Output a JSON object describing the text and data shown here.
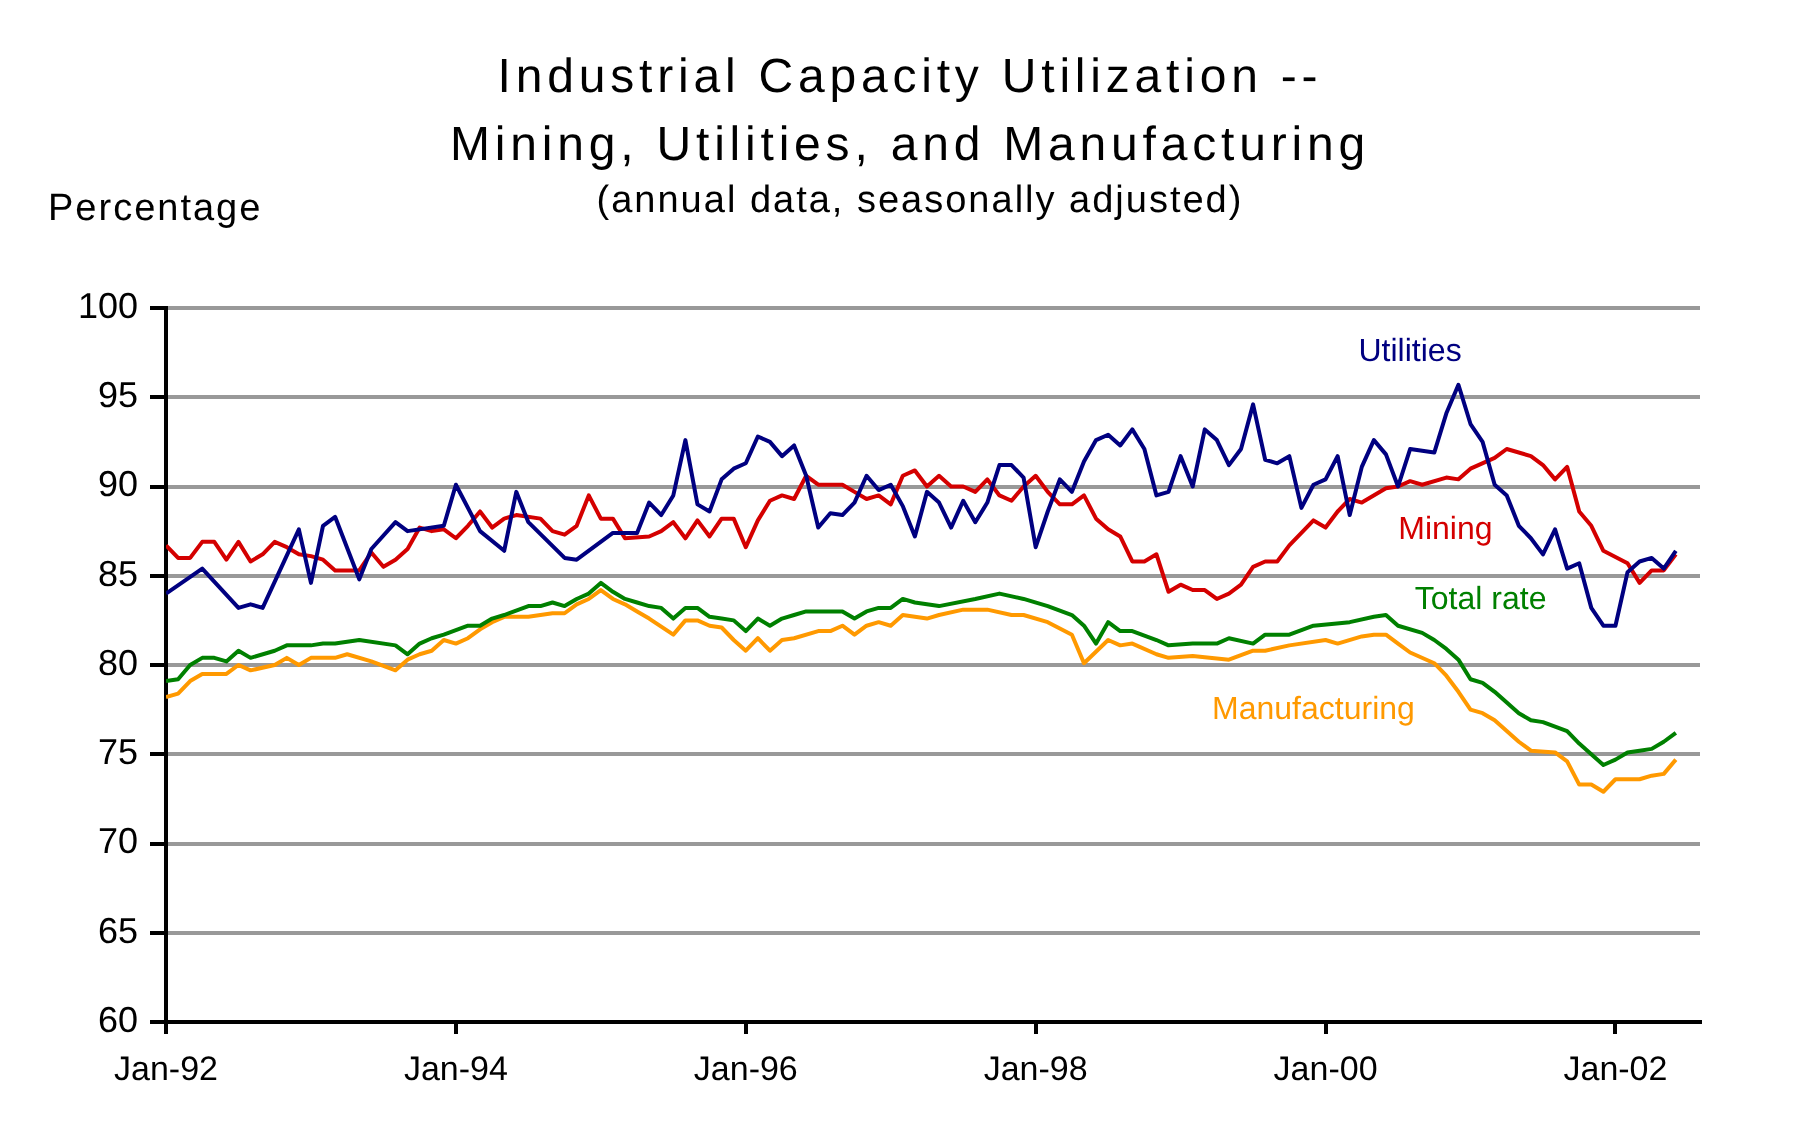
{
  "chart_data": {
    "type": "line",
    "title": "Industrial Capacity Utilization -- Mining, Utilities, and Manufacturing",
    "subtitle": "(annual data, seasonally adjusted)",
    "ylabel": "Percentage",
    "xlim": [
      "1992-01",
      "2002-08"
    ],
    "xticks": [
      {
        "value": "1992-01",
        "label": "Jan-92"
      },
      {
        "value": "1994-01",
        "label": "Jan-94"
      },
      {
        "value": "1996-01",
        "label": "Jan-96"
      },
      {
        "value": "1998-01",
        "label": "Jan-98"
      },
      {
        "value": "2000-01",
        "label": "Jan-00"
      },
      {
        "value": "2002-01",
        "label": "Jan-02"
      }
    ],
    "ylim": [
      60,
      100
    ],
    "yticks": [
      60,
      65,
      70,
      75,
      80,
      85,
      90,
      95,
      100
    ],
    "grid": "y",
    "line_style": "solid",
    "series": [
      {
        "name": "Utilities",
        "color": "#000080",
        "x": [
          "1992-01",
          "1992-04",
          "1992-07",
          "1992-08",
          "1992-09",
          "1992-12",
          "1993-01",
          "1993-02",
          "1993-03",
          "1993-05",
          "1993-06",
          "1993-08",
          "1993-09",
          "1993-12",
          "1994-01",
          "1994-03",
          "1994-05",
          "1994-06",
          "1994-07",
          "1994-10",
          "1994-11",
          "1995-02",
          "1995-04",
          "1995-05",
          "1995-06",
          "1995-07",
          "1995-08",
          "1995-09",
          "1995-10",
          "1995-11",
          "1995-12",
          "1996-01",
          "1996-02",
          "1996-03",
          "1996-04",
          "1996-05",
          "1996-06",
          "1996-07",
          "1996-08",
          "1996-09",
          "1996-10",
          "1996-11",
          "1996-12",
          "1997-01",
          "1997-02",
          "1997-03",
          "1997-04",
          "1997-05",
          "1997-06",
          "1997-07",
          "1997-08",
          "1997-09",
          "1997-10",
          "1997-11",
          "1997-12",
          "1998-01",
          "1998-02",
          "1998-03",
          "1998-04",
          "1998-05",
          "1998-06",
          "1998-07",
          "1998-08",
          "1998-09",
          "1998-10",
          "1998-11",
          "1998-12",
          "1999-01",
          "1999-02",
          "1999-03",
          "1999-04",
          "1999-05",
          "1999-06",
          "1999-07",
          "1999-08",
          "1999-09",
          "1999-10",
          "1999-11",
          "1999-12",
          "2000-01",
          "2000-02",
          "2000-03",
          "2000-04",
          "2000-05",
          "2000-06",
          "2000-07",
          "2000-08",
          "2000-09",
          "2000-10",
          "2000-11",
          "2000-12",
          "2001-01",
          "2001-02",
          "2001-03",
          "2001-04",
          "2001-05",
          "2001-06",
          "2001-07",
          "2001-08",
          "2001-09",
          "2001-10",
          "2001-11",
          "2001-12",
          "2002-01",
          "2002-02",
          "2002-03",
          "2002-04",
          "2002-05",
          "2002-06"
        ],
        "values": [
          84.0,
          85.4,
          83.2,
          83.4,
          83.2,
          87.6,
          84.6,
          87.8,
          88.3,
          84.8,
          86.5,
          88.0,
          87.5,
          87.8,
          90.1,
          87.5,
          86.4,
          89.7,
          88.0,
          86.0,
          85.9,
          87.4,
          87.4,
          89.1,
          88.4,
          89.5,
          92.6,
          89.0,
          88.6,
          90.4,
          91.0,
          91.3,
          92.8,
          92.5,
          91.7,
          92.3,
          90.6,
          87.7,
          88.5,
          88.4,
          89.1,
          90.6,
          89.8,
          90.1,
          88.9,
          87.2,
          89.7,
          89.1,
          87.7,
          89.2,
          88.0,
          89.1,
          91.2,
          91.2,
          90.5,
          86.6,
          88.6,
          90.4,
          89.7,
          91.4,
          92.6,
          92.9,
          92.3,
          93.2,
          92.1,
          89.5,
          89.7,
          91.7,
          90.0,
          93.2,
          92.6,
          91.2,
          92.1,
          94.6,
          91.5,
          91.3,
          91.7,
          88.8,
          90.1,
          90.4,
          91.7,
          88.4,
          91.1,
          92.6,
          91.8,
          90.0,
          92.1,
          92.0,
          91.9,
          94.1,
          95.7,
          93.5,
          92.5,
          90.1,
          89.5,
          87.8,
          87.1,
          86.2,
          87.6,
          85.4,
          85.7,
          83.2,
          82.2,
          82.2,
          85.2,
          85.8,
          86.0,
          85.4,
          86.4
        ]
      },
      {
        "name": "Mining",
        "color": "#d40000",
        "x": [
          "1992-01",
          "1992-02",
          "1992-03",
          "1992-04",
          "1992-05",
          "1992-06",
          "1992-07",
          "1992-08",
          "1992-09",
          "1992-10",
          "1992-11",
          "1992-12",
          "1993-01",
          "1993-02",
          "1993-03",
          "1993-05",
          "1993-06",
          "1993-07",
          "1993-08",
          "1993-09",
          "1993-10",
          "1993-11",
          "1993-12",
          "1994-01",
          "1994-02",
          "1994-03",
          "1994-04",
          "1994-05",
          "1994-06",
          "1994-08",
          "1994-09",
          "1994-10",
          "1994-11",
          "1994-12",
          "1995-01",
          "1995-02",
          "1995-03",
          "1995-05",
          "1995-06",
          "1995-07",
          "1995-08",
          "1995-09",
          "1995-10",
          "1995-11",
          "1995-12",
          "1996-01",
          "1996-02",
          "1996-03",
          "1996-04",
          "1996-05",
          "1996-06",
          "1996-07",
          "1996-09",
          "1996-10",
          "1996-11",
          "1996-12",
          "1997-01",
          "1997-02",
          "1997-03",
          "1997-04",
          "1997-05",
          "1997-06",
          "1997-07",
          "1997-08",
          "1997-09",
          "1997-10",
          "1997-11",
          "1997-12",
          "1998-01",
          "1998-02",
          "1998-03",
          "1998-04",
          "1998-05",
          "1998-06",
          "1998-07",
          "1998-08",
          "1998-09",
          "1998-10",
          "1998-11",
          "1998-12",
          "1999-01",
          "1999-02",
          "1999-03",
          "1999-04",
          "1999-05",
          "1999-06",
          "1999-07",
          "1999-08",
          "1999-09",
          "1999-10",
          "1999-12",
          "2000-01",
          "2000-02",
          "2000-03",
          "2000-04",
          "2000-06",
          "2000-07",
          "2000-08",
          "2000-09",
          "2000-11",
          "2000-12",
          "2001-01",
          "2001-03",
          "2001-04",
          "2001-06",
          "2001-07",
          "2001-08",
          "2001-09",
          "2001-10",
          "2001-11",
          "2001-12",
          "2002-02",
          "2002-03",
          "2002-04",
          "2002-05",
          "2002-06"
        ],
        "values": [
          86.7,
          86.0,
          86.0,
          86.9,
          86.9,
          85.9,
          86.9,
          85.8,
          86.2,
          86.9,
          86.6,
          86.2,
          86.1,
          85.9,
          85.3,
          85.3,
          86.3,
          85.5,
          85.9,
          86.5,
          87.7,
          87.5,
          87.6,
          87.1,
          87.8,
          88.6,
          87.7,
          88.2,
          88.4,
          88.2,
          87.5,
          87.3,
          87.8,
          89.5,
          88.2,
          88.2,
          87.1,
          87.2,
          87.5,
          88.0,
          87.1,
          88.1,
          87.2,
          88.2,
          88.2,
          86.6,
          88.1,
          89.2,
          89.5,
          89.3,
          90.6,
          90.1,
          90.1,
          89.7,
          89.3,
          89.5,
          89.0,
          90.6,
          90.9,
          90.0,
          90.6,
          90.0,
          90.0,
          89.7,
          90.4,
          89.5,
          89.2,
          90.0,
          90.6,
          89.7,
          89.0,
          89.0,
          89.5,
          88.2,
          87.6,
          87.2,
          85.8,
          85.8,
          86.2,
          84.1,
          84.5,
          84.2,
          84.2,
          83.7,
          84.0,
          84.5,
          85.5,
          85.8,
          85.8,
          86.7,
          88.1,
          87.7,
          88.6,
          89.3,
          89.1,
          89.9,
          90.0,
          90.3,
          90.1,
          90.5,
          90.4,
          91.0,
          91.6,
          92.1,
          91.7,
          91.2,
          90.4,
          91.1,
          88.6,
          87.8,
          86.4,
          85.7,
          84.6,
          85.3,
          85.3,
          86.2
        ]
      },
      {
        "name": "Total rate",
        "color": "#008000",
        "x": [
          "1992-01",
          "1992-02",
          "1992-03",
          "1992-04",
          "1992-05",
          "1992-06",
          "1992-07",
          "1992-08",
          "1992-10",
          "1992-11",
          "1993-01",
          "1993-02",
          "1993-03",
          "1993-05",
          "1993-08",
          "1993-09",
          "1993-10",
          "1993-11",
          "1993-12",
          "1994-02",
          "1994-03",
          "1994-04",
          "1994-05",
          "1994-07",
          "1994-08",
          "1994-09",
          "1994-10",
          "1994-11",
          "1994-12",
          "1995-01",
          "1995-02",
          "1995-03",
          "1995-04",
          "1995-05",
          "1995-06",
          "1995-07",
          "1995-08",
          "1995-09",
          "1995-10",
          "1995-11",
          "1995-12",
          "1996-01",
          "1996-02",
          "1996-03",
          "1996-04",
          "1996-05",
          "1996-06",
          "1996-07",
          "1996-08",
          "1996-09",
          "1996-10",
          "1996-11",
          "1996-12",
          "1997-01",
          "1997-02",
          "1997-03",
          "1997-05",
          "1997-08",
          "1997-10",
          "1997-12",
          "1998-02",
          "1998-04",
          "1998-05",
          "1998-06",
          "1998-07",
          "1998-08",
          "1998-09",
          "1998-11",
          "1998-12",
          "1999-02",
          "1999-04",
          "1999-05",
          "1999-07",
          "1999-08",
          "1999-10",
          "1999-12",
          "2000-03",
          "2000-05",
          "2000-06",
          "2000-07",
          "2000-09",
          "2000-10",
          "2000-11",
          "2000-12",
          "2001-01",
          "2001-02",
          "2001-03",
          "2001-04",
          "2001-05",
          "2001-06",
          "2001-07",
          "2001-09",
          "2001-10",
          "2001-11",
          "2001-12",
          "2002-01",
          "2002-02",
          "2002-03",
          "2002-04",
          "2002-05",
          "2002-06"
        ],
        "values": [
          79.1,
          79.2,
          80.0,
          80.4,
          80.4,
          80.2,
          80.8,
          80.4,
          80.8,
          81.1,
          81.1,
          81.2,
          81.2,
          81.4,
          81.1,
          80.6,
          81.2,
          81.5,
          81.7,
          82.2,
          82.2,
          82.6,
          82.8,
          83.3,
          83.3,
          83.5,
          83.3,
          83.7,
          84.0,
          84.6,
          84.1,
          83.7,
          83.5,
          83.3,
          83.2,
          82.6,
          83.2,
          83.2,
          82.7,
          82.6,
          82.5,
          81.9,
          82.6,
          82.2,
          82.6,
          82.8,
          83.0,
          83.0,
          83.0,
          83.0,
          82.6,
          83.0,
          83.2,
          83.2,
          83.7,
          83.5,
          83.3,
          83.7,
          84.0,
          83.7,
          83.3,
          82.8,
          82.2,
          81.2,
          82.4,
          81.9,
          81.9,
          81.4,
          81.1,
          81.2,
          81.2,
          81.5,
          81.2,
          81.7,
          81.7,
          82.2,
          82.4,
          82.7,
          82.8,
          82.2,
          81.8,
          81.4,
          80.9,
          80.3,
          79.2,
          79.0,
          78.5,
          77.9,
          77.3,
          76.9,
          76.8,
          76.3,
          75.6,
          75.0,
          74.4,
          74.7,
          75.1,
          75.2,
          75.3,
          75.7,
          76.2
        ]
      },
      {
        "name": "Manufacturing",
        "color": "#ff9900",
        "x": [
          "1992-01",
          "1992-02",
          "1992-03",
          "1992-04",
          "1992-06",
          "1992-07",
          "1992-08",
          "1992-10",
          "1992-11",
          "1992-12",
          "1993-01",
          "1993-03",
          "1993-04",
          "1993-06",
          "1993-08",
          "1993-09",
          "1993-10",
          "1993-11",
          "1993-12",
          "1994-01",
          "1994-02",
          "1994-03",
          "1994-04",
          "1994-05",
          "1994-07",
          "1994-09",
          "1994-10",
          "1994-11",
          "1994-12",
          "1995-01",
          "1995-02",
          "1995-03",
          "1995-04",
          "1995-05",
          "1995-07",
          "1995-08",
          "1995-09",
          "1995-10",
          "1995-11",
          "1995-12",
          "1996-01",
          "1996-02",
          "1996-03",
          "1996-04",
          "1996-05",
          "1996-07",
          "1996-08",
          "1996-09",
          "1996-10",
          "1996-11",
          "1996-12",
          "1997-01",
          "1997-02",
          "1997-04",
          "1997-05",
          "1997-07",
          "1997-09",
          "1997-11",
          "1997-12",
          "1998-02",
          "1998-04",
          "1998-05",
          "1998-07",
          "1998-08",
          "1998-09",
          "1998-11",
          "1998-12",
          "1999-02",
          "1999-05",
          "1999-07",
          "1999-08",
          "1999-10",
          "2000-01",
          "2000-02",
          "2000-04",
          "2000-05",
          "2000-06",
          "2000-07",
          "2000-08",
          "2000-10",
          "2000-11",
          "2000-12",
          "2001-01",
          "2001-02",
          "2001-03",
          "2001-04",
          "2001-05",
          "2001-06",
          "2001-08",
          "2001-09",
          "2001-10",
          "2001-11",
          "2001-12",
          "2002-01",
          "2002-03",
          "2002-04",
          "2002-05",
          "2002-06"
        ],
        "values": [
          78.2,
          78.4,
          79.1,
          79.5,
          79.5,
          80.0,
          79.7,
          80.0,
          80.4,
          80.0,
          80.4,
          80.4,
          80.6,
          80.2,
          79.7,
          80.3,
          80.6,
          80.8,
          81.4,
          81.2,
          81.5,
          82.0,
          82.4,
          82.7,
          82.7,
          82.9,
          82.9,
          83.4,
          83.7,
          84.2,
          83.7,
          83.4,
          83.0,
          82.6,
          81.7,
          82.5,
          82.5,
          82.2,
          82.1,
          81.4,
          80.8,
          81.5,
          80.8,
          81.4,
          81.5,
          81.9,
          81.9,
          82.2,
          81.7,
          82.2,
          82.4,
          82.2,
          82.8,
          82.6,
          82.8,
          83.1,
          83.1,
          82.8,
          82.8,
          82.4,
          81.7,
          80.1,
          81.4,
          81.1,
          81.2,
          80.6,
          80.4,
          80.5,
          80.3,
          80.8,
          80.8,
          81.1,
          81.4,
          81.2,
          81.6,
          81.7,
          81.7,
          81.2,
          80.7,
          80.1,
          79.4,
          78.5,
          77.5,
          77.3,
          76.9,
          76.3,
          75.7,
          75.2,
          75.1,
          74.6,
          73.3,
          73.3,
          72.9,
          73.6,
          73.6,
          73.8,
          73.9,
          74.7
        ]
      }
    ]
  }
}
